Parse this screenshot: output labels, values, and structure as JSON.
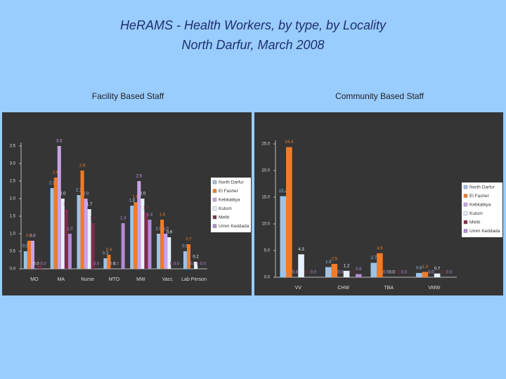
{
  "slide": {
    "title": "HeRAMS -  Health Workers, by type, by Locality",
    "subtitle": "North Darfur, March 2008"
  },
  "chart_data": [
    {
      "type": "bar",
      "title": "Facility Based Staff",
      "categories": [
        "MO",
        "MA",
        "Nurse",
        "MTO",
        "MW",
        "Vacc",
        "Lab Person"
      ],
      "series": [
        {
          "name": "North Darfur",
          "color": "#9dc3e6",
          "values": [
            0.5,
            2.3,
            2.1,
            0.3,
            1.8,
            1.0,
            0.5
          ],
          "value_labels": [
            "0.5",
            "2.3",
            "2.1",
            "0.3",
            "1.8",
            "1.0",
            "0.5"
          ]
        },
        {
          "name": "El Fasher",
          "color": "#f07c28",
          "values": [
            0.8,
            2.6,
            2.8,
            0.4,
            1.9,
            1.4,
            0.7
          ],
          "value_labels": [
            "0.8",
            "2.6",
            "2.8",
            "0.4",
            "1.9",
            "1.4",
            "0.7"
          ]
        },
        {
          "name": "Kebkabiya",
          "color": "#c9a3e6",
          "values": [
            0.8,
            3.5,
            2.0,
            0,
            2.5,
            1.0,
            0
          ],
          "value_labels": [
            "0.8",
            "3.5",
            "2.0",
            "0.0",
            "2.5",
            "1.0",
            "0.0"
          ]
        },
        {
          "name": "Kutum",
          "color": "#e8f2ff",
          "values": [
            0,
            2.0,
            1.7,
            0,
            2.0,
            0.9,
            0.2
          ],
          "value_labels": [
            "0.0",
            "2.0",
            "1.7",
            "0.0",
            "2.0",
            "0.9",
            "0.2"
          ]
        },
        {
          "name": "Mellit",
          "color": "#7b2c4a",
          "values": [
            0.1,
            1.7,
            1.3,
            0,
            1.6,
            0,
            0
          ],
          "value_labels": [
            "0.1",
            "1.7",
            "1.3",
            "0.0",
            "1.6",
            "0.0",
            "0.0"
          ]
        },
        {
          "name": "Umm Keddada",
          "color": "#b48ad6",
          "values": [
            0,
            1.0,
            0,
            1.3,
            1.4,
            0,
            0
          ],
          "value_labels": [
            "0.0",
            "1.0",
            "0.0",
            "1.3",
            "1.4",
            "0.0",
            "0.0"
          ]
        }
      ],
      "ylim": [
        0,
        3.5
      ],
      "yticks": [
        {
          "value": 0,
          "label": "0.0"
        },
        0.5,
        {
          "value": 1,
          "label": "1.0"
        },
        1.5,
        {
          "value": 2,
          "label": "2.0"
        },
        2.5,
        {
          "value": 3,
          "label": "3.0"
        },
        3.5
      ],
      "legend": "right"
    },
    {
      "type": "bar",
      "title": "Community Based Staff",
      "categories": [
        "VV",
        "CHW",
        "TBA",
        "VMW"
      ],
      "series": [
        {
          "name": "North Darfur",
          "color": "#9dc3e6",
          "values": [
            15.2,
            1.9,
            2.7,
            0.8
          ],
          "value_labels": [
            "15.2",
            "1.9",
            "2.7",
            "0.8"
          ]
        },
        {
          "name": "El Fasher",
          "color": "#f07c28",
          "values": [
            24.4,
            2.5,
            4.5,
            1.0
          ],
          "value_labels": [
            "24.4",
            "2.5",
            "4.5",
            "1.0"
          ]
        },
        {
          "name": "Kebkabiya",
          "color": "#c9a3e6",
          "values": [
            0,
            0,
            0,
            0
          ],
          "value_labels": [
            "0.0",
            "0.0",
            "0.0",
            "0.0"
          ]
        },
        {
          "name": "Kutum",
          "color": "#e8f2ff",
          "values": [
            4.3,
            1.2,
            0,
            0.7
          ],
          "value_labels": [
            "4.3",
            "1.2",
            "0.0",
            "0.7"
          ]
        },
        {
          "name": "Mellit",
          "color": "#7b2c4a",
          "values": [
            0,
            0,
            0,
            0
          ],
          "value_labels": [
            "0.0",
            "0.0",
            "0.0",
            "0.0"
          ]
        },
        {
          "name": "Umm Keddada",
          "color": "#b48ad6",
          "values": [
            0,
            0.6,
            0,
            0
          ],
          "value_labels": [
            "0.0",
            "0.6",
            "0.0",
            "0.0"
          ]
        }
      ],
      "ylim": [
        0,
        25
      ],
      "yticks": [
        {
          "value": 0,
          "label": "0.0"
        },
        {
          "value": 5,
          "label": "5.0"
        },
        {
          "value": 10,
          "label": "10.0"
        },
        {
          "value": 15,
          "label": "15.0"
        },
        {
          "value": 20,
          "label": "20.0"
        },
        {
          "value": 25,
          "label": "25.0"
        }
      ],
      "legend": "right"
    }
  ]
}
